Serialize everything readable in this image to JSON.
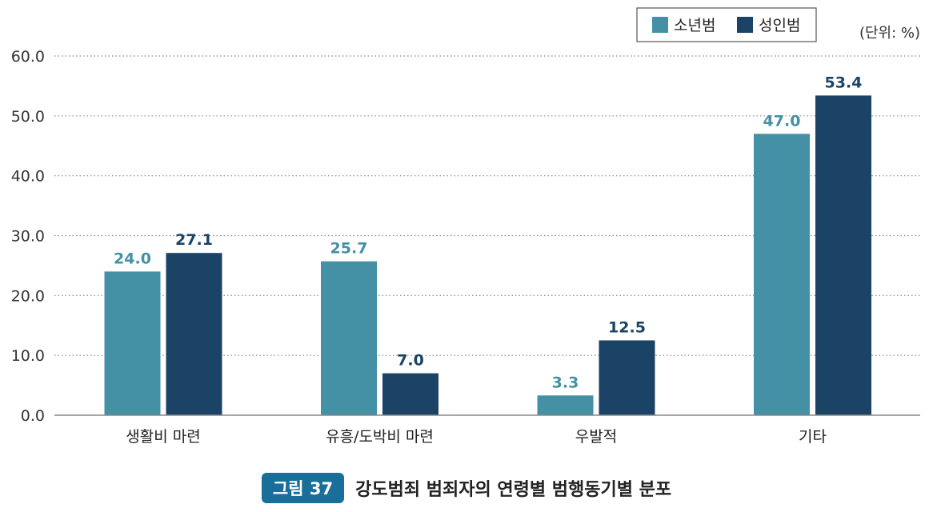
{
  "colors": {
    "series_1": "#4490a5",
    "series_2": "#1b4366",
    "grid": "#888888",
    "axis": "#888888",
    "caption_badge": "#1a6f9a"
  },
  "caption": {
    "badge": "그림 37",
    "title": "강도범죄 범죄자의 연령별 범행동기별 분포"
  },
  "chart_data": {
    "type": "bar",
    "unit_label": "(단위: %)",
    "categories": [
      "생활비 마련",
      "유흥/도박비 마련",
      "우발적",
      "기타"
    ],
    "series": [
      {
        "name": "소년범",
        "values": [
          24.0,
          25.7,
          3.3,
          47.0
        ]
      },
      {
        "name": "성인범",
        "values": [
          27.1,
          7.0,
          12.5,
          53.4
        ]
      }
    ],
    "yticks": [
      "0.0",
      "10.0",
      "20.0",
      "30.0",
      "40.0",
      "50.0",
      "60.0"
    ],
    "ylim": [
      0,
      60
    ],
    "grid": true,
    "legend_position": "top-right"
  }
}
